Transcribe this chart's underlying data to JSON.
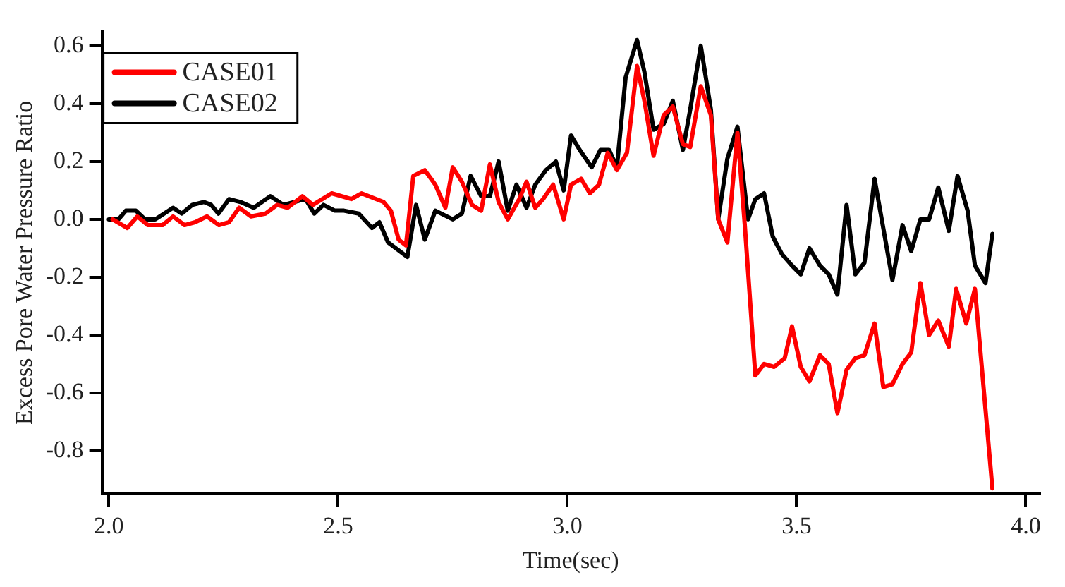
{
  "chart_data": {
    "type": "line",
    "xlabel": "Time(sec)",
    "ylabel": "Excess Pore Water Pressure Ratio",
    "xlim": [
      1.985,
      4.03
    ],
    "ylim": [
      -0.95,
      0.65
    ],
    "xticks": [
      {
        "value": 2,
        "label": "2.0"
      },
      {
        "value": 2.5,
        "label": "2.5"
      },
      {
        "value": 3,
        "label": "3.0"
      },
      {
        "value": 3.5,
        "label": "3.5"
      },
      {
        "value": 4,
        "label": "4.0"
      }
    ],
    "yticks": [
      {
        "value": -0.8,
        "label": "-0.8"
      },
      {
        "value": -0.6,
        "label": "-0.6"
      },
      {
        "value": -0.4,
        "label": "-0.4"
      },
      {
        "value": -0.2,
        "label": "-0.2"
      },
      {
        "value": 0,
        "label": "0.0"
      },
      {
        "value": 0.2,
        "label": "0.2"
      },
      {
        "value": 0.4,
        "label": "0.4"
      },
      {
        "value": 0.6,
        "label": "0.6"
      }
    ],
    "grid": false,
    "legend": "top left",
    "marker": "none",
    "line_style": "solid",
    "series": [
      {
        "name": "CASE01",
        "color": "#ff0000",
        "x": [
          2.008,
          2.04,
          2.062,
          2.085,
          2.117,
          2.14,
          2.165,
          2.188,
          2.214,
          2.24,
          2.262,
          2.284,
          2.31,
          2.342,
          2.367,
          2.39,
          2.422,
          2.445,
          2.486,
          2.529,
          2.551,
          2.599,
          2.615,
          2.632,
          2.648,
          2.664,
          2.689,
          2.712,
          2.734,
          2.75,
          2.77,
          2.792,
          2.812,
          2.831,
          2.85,
          2.87,
          2.895,
          2.911,
          2.93,
          2.947,
          2.969,
          2.992,
          3.008,
          3.03,
          3.049,
          3.069,
          3.088,
          3.108,
          3.13,
          3.152,
          3.168,
          3.188,
          3.21,
          3.23,
          3.252,
          3.268,
          3.291,
          3.313,
          3.329,
          3.349,
          3.371,
          3.387,
          3.41,
          3.429,
          3.451,
          3.474,
          3.49,
          3.509,
          3.528,
          3.551,
          3.57,
          3.589,
          3.609,
          3.628,
          3.648,
          3.67,
          3.689,
          3.709,
          3.731,
          3.75,
          3.77,
          3.789,
          3.809,
          3.832,
          3.848,
          3.87,
          3.889,
          3.927
        ],
        "values": [
          0.0,
          -0.03,
          0.01,
          -0.02,
          -0.02,
          0.01,
          -0.02,
          -0.01,
          0.01,
          -0.02,
          -0.01,
          0.04,
          0.01,
          0.02,
          0.05,
          0.04,
          0.08,
          0.05,
          0.09,
          0.07,
          0.09,
          0.06,
          0.03,
          -0.07,
          -0.09,
          0.15,
          0.17,
          0.12,
          0.04,
          0.18,
          0.13,
          0.05,
          0.03,
          0.19,
          0.06,
          0.0,
          0.07,
          0.13,
          0.04,
          0.07,
          0.12,
          0.0,
          0.12,
          0.14,
          0.09,
          0.12,
          0.23,
          0.17,
          0.23,
          0.53,
          0.41,
          0.22,
          0.36,
          0.39,
          0.26,
          0.25,
          0.46,
          0.36,
          0.0,
          -0.08,
          0.3,
          -0.02,
          -0.54,
          -0.5,
          -0.51,
          -0.48,
          -0.37,
          -0.51,
          -0.56,
          -0.47,
          -0.5,
          -0.67,
          -0.52,
          -0.48,
          -0.47,
          -0.36,
          -0.58,
          -0.57,
          -0.5,
          -0.46,
          -0.22,
          -0.4,
          -0.35,
          -0.44,
          -0.24,
          -0.36,
          -0.24,
          -0.93
        ]
      },
      {
        "name": "CASE02",
        "color": "#000000",
        "x": [
          2.0,
          2.021,
          2.037,
          2.059,
          2.079,
          2.101,
          2.14,
          2.159,
          2.182,
          2.207,
          2.223,
          2.239,
          2.262,
          2.287,
          2.316,
          2.352,
          2.381,
          2.429,
          2.448,
          2.468,
          2.493,
          2.513,
          2.545,
          2.574,
          2.59,
          2.609,
          2.651,
          2.67,
          2.689,
          2.712,
          2.75,
          2.77,
          2.789,
          2.812,
          2.831,
          2.85,
          2.87,
          2.889,
          2.911,
          2.93,
          2.953,
          2.975,
          2.992,
          3.008,
          3.027,
          3.053,
          3.072,
          3.091,
          3.108,
          3.127,
          3.152,
          3.168,
          3.188,
          3.21,
          3.23,
          3.252,
          3.268,
          3.291,
          3.313,
          3.329,
          3.349,
          3.371,
          3.394,
          3.41,
          3.429,
          3.448,
          3.468,
          3.49,
          3.509,
          3.528,
          3.551,
          3.57,
          3.589,
          3.609,
          3.628,
          3.648,
          3.67,
          3.689,
          3.709,
          3.731,
          3.75,
          3.77,
          3.789,
          3.809,
          3.832,
          3.851,
          3.873,
          3.889,
          3.912,
          3.927
        ],
        "values": [
          0.0,
          0.0,
          0.03,
          0.03,
          0.0,
          0.0,
          0.04,
          0.02,
          0.05,
          0.06,
          0.05,
          0.02,
          0.07,
          0.06,
          0.04,
          0.08,
          0.05,
          0.07,
          0.02,
          0.05,
          0.03,
          0.03,
          0.02,
          -0.03,
          -0.01,
          -0.08,
          -0.13,
          0.05,
          -0.07,
          0.03,
          0.0,
          0.02,
          0.15,
          0.08,
          0.08,
          0.2,
          0.03,
          0.12,
          0.04,
          0.12,
          0.17,
          0.2,
          0.1,
          0.29,
          0.24,
          0.18,
          0.24,
          0.24,
          0.18,
          0.49,
          0.62,
          0.51,
          0.31,
          0.33,
          0.41,
          0.24,
          0.38,
          0.6,
          0.38,
          0.0,
          0.21,
          0.32,
          0.0,
          0.07,
          0.09,
          -0.06,
          -0.12,
          -0.16,
          -0.19,
          -0.1,
          -0.16,
          -0.19,
          -0.26,
          0.05,
          -0.19,
          -0.15,
          0.14,
          -0.03,
          -0.21,
          -0.02,
          -0.11,
          0.0,
          0.0,
          0.11,
          -0.04,
          0.15,
          0.03,
          -0.16,
          -0.22,
          -0.05
        ]
      }
    ]
  }
}
